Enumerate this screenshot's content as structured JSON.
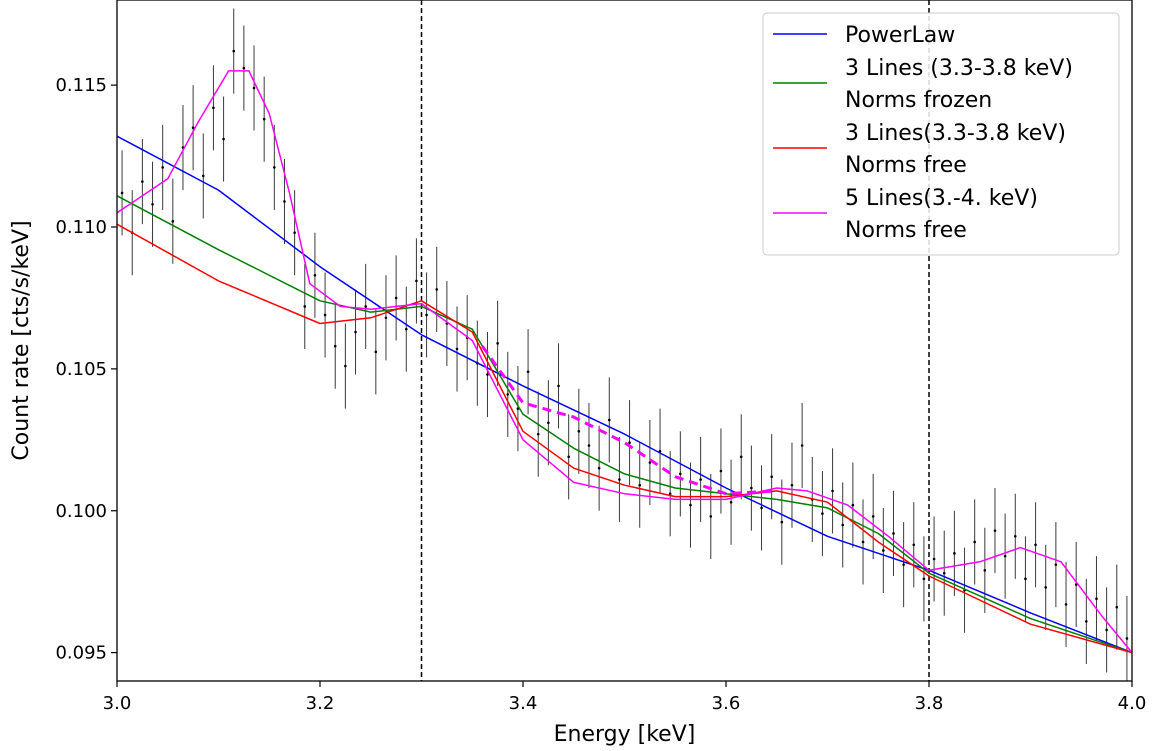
{
  "chart_data": {
    "type": "line",
    "xlabel": "Energy [keV]",
    "ylabel": "Count rate [cts/s/keV]",
    "xlim": [
      3.0,
      4.0
    ],
    "ylim": [
      0.094,
      0.118
    ],
    "xticks": [
      "3.0",
      "3.2",
      "3.4",
      "3.6",
      "3.8",
      "4.0"
    ],
    "yticks": [
      "0.095",
      "0.100",
      "0.105",
      "0.110",
      "0.115"
    ],
    "grid": false,
    "legend_position": "top-right",
    "vlines": [
      3.3,
      3.8
    ],
    "legend": [
      {
        "lines": [
          "PowerLaw"
        ],
        "color": "#0000ff"
      },
      {
        "lines": [
          "3 Lines (3.3-3.8 keV)",
          "Norms frozen"
        ],
        "color": "#008000"
      },
      {
        "lines": [
          "3 Lines(3.3-3.8 keV)",
          "Norms free"
        ],
        "color": "#ff0000"
      },
      {
        "lines": [
          "5 Lines(3.-4. keV)",
          "Norms free"
        ],
        "color": "#ff00ff"
      }
    ],
    "series": [
      {
        "name": "PowerLaw",
        "color": "#0000ff",
        "x": [
          3.0,
          3.1,
          3.2,
          3.3,
          3.4,
          3.5,
          3.6,
          3.7,
          3.8,
          3.9,
          4.0
        ],
        "y": [
          0.1132,
          0.1113,
          0.1086,
          0.1062,
          0.1044,
          0.1027,
          0.1008,
          0.0991,
          0.0979,
          0.0964,
          0.095
        ]
      },
      {
        "name": "3 Lines (3.3-3.8 keV) Norms frozen",
        "color": "#008000",
        "x": [
          3.0,
          3.1,
          3.2,
          3.25,
          3.3,
          3.35,
          3.4,
          3.45,
          3.5,
          3.55,
          3.6,
          3.65,
          3.7,
          3.75,
          3.8,
          3.9,
          4.0
        ],
        "y": [
          0.1111,
          0.1092,
          0.1074,
          0.107,
          0.1072,
          0.1064,
          0.1034,
          0.1022,
          0.1013,
          0.1008,
          0.1006,
          0.1004,
          0.1001,
          0.0992,
          0.0978,
          0.0962,
          0.095
        ]
      },
      {
        "name": "3 Lines(3.3-3.8 keV) Norms free",
        "color": "#ff0000",
        "x": [
          3.0,
          3.1,
          3.2,
          3.25,
          3.3,
          3.35,
          3.4,
          3.45,
          3.5,
          3.55,
          3.6,
          3.65,
          3.7,
          3.75,
          3.8,
          3.9,
          4.0
        ],
        "y": [
          0.1101,
          0.1081,
          0.1066,
          0.1068,
          0.1074,
          0.1063,
          0.1028,
          0.1015,
          0.1009,
          0.1005,
          0.1005,
          0.1007,
          0.1003,
          0.0989,
          0.0977,
          0.096,
          0.095
        ]
      },
      {
        "name": "5 Lines(3.-4. keV) Norms free",
        "color": "#ff00ff",
        "x": [
          3.0,
          3.05,
          3.08,
          3.11,
          3.13,
          3.15,
          3.17,
          3.19,
          3.22,
          3.25,
          3.3,
          3.35,
          3.4,
          3.45,
          3.5,
          3.55,
          3.6,
          3.65,
          3.68,
          3.72,
          3.76,
          3.8,
          3.85,
          3.89,
          3.93,
          3.97,
          4.0
        ],
        "y": [
          0.1105,
          0.1117,
          0.1137,
          0.1155,
          0.1155,
          0.114,
          0.1112,
          0.108,
          0.1072,
          0.1071,
          0.1073,
          0.106,
          0.1025,
          0.101,
          0.1006,
          0.1004,
          0.1004,
          0.1008,
          0.1007,
          0.1002,
          0.0991,
          0.0979,
          0.0982,
          0.0987,
          0.0982,
          0.0963,
          0.095
        ]
      },
      {
        "name": "dashed",
        "color": "#ff00ff",
        "dashed": true,
        "x": [
          3.36,
          3.4,
          3.45,
          3.5,
          3.55,
          3.6,
          3.65
        ],
        "y": [
          0.1058,
          0.1038,
          0.1033,
          0.1024,
          0.1012,
          0.1006,
          0.1007
        ]
      }
    ],
    "data_points": {
      "x": [
        3.005,
        3.015,
        3.025,
        3.035,
        3.045,
        3.055,
        3.065,
        3.075,
        3.085,
        3.095,
        3.105,
        3.115,
        3.125,
        3.135,
        3.145,
        3.155,
        3.165,
        3.175,
        3.185,
        3.195,
        3.205,
        3.215,
        3.225,
        3.235,
        3.245,
        3.255,
        3.265,
        3.275,
        3.285,
        3.295,
        3.305,
        3.315,
        3.325,
        3.335,
        3.345,
        3.355,
        3.365,
        3.375,
        3.385,
        3.395,
        3.405,
        3.415,
        3.425,
        3.435,
        3.445,
        3.455,
        3.465,
        3.475,
        3.485,
        3.495,
        3.505,
        3.515,
        3.525,
        3.535,
        3.545,
        3.555,
        3.565,
        3.575,
        3.585,
        3.595,
        3.605,
        3.615,
        3.625,
        3.635,
        3.645,
        3.655,
        3.665,
        3.675,
        3.685,
        3.695,
        3.705,
        3.715,
        3.725,
        3.735,
        3.745,
        3.755,
        3.765,
        3.775,
        3.785,
        3.795,
        3.805,
        3.815,
        3.825,
        3.835,
        3.845,
        3.855,
        3.865,
        3.875,
        3.885,
        3.895,
        3.905,
        3.915,
        3.925,
        3.935,
        3.945,
        3.955,
        3.965,
        3.975,
        3.985,
        3.995
      ],
      "y": [
        0.1112,
        0.1098,
        0.1116,
        0.1108,
        0.1121,
        0.1102,
        0.1128,
        0.1135,
        0.1118,
        0.1142,
        0.1131,
        0.1162,
        0.1156,
        0.1149,
        0.1138,
        0.1121,
        0.1109,
        0.1098,
        0.1072,
        0.1083,
        0.1069,
        0.1058,
        0.1051,
        0.1063,
        0.1072,
        0.1056,
        0.1068,
        0.1075,
        0.1064,
        0.1081,
        0.1069,
        0.1078,
        0.1066,
        0.1057,
        0.1061,
        0.1052,
        0.1048,
        0.1059,
        0.1041,
        0.1036,
        0.1049,
        0.1027,
        0.1031,
        0.1044,
        0.1019,
        0.1028,
        0.1023,
        0.1015,
        0.1032,
        0.1011,
        0.1024,
        0.1009,
        0.1017,
        0.1021,
        0.1006,
        0.1013,
        0.1002,
        0.1011,
        0.0998,
        0.1014,
        0.1003,
        0.1019,
        0.1008,
        0.1001,
        0.1012,
        0.0996,
        0.1009,
        0.1023,
        0.1004,
        0.0999,
        0.1007,
        0.0995,
        0.1002,
        0.0989,
        0.0998,
        0.0986,
        0.0992,
        0.0981,
        0.0988,
        0.0976,
        0.0983,
        0.0978,
        0.0985,
        0.0972,
        0.0989,
        0.0979,
        0.0993,
        0.0984,
        0.0991,
        0.0976,
        0.0988,
        0.0973,
        0.0981,
        0.0967,
        0.0974,
        0.0961,
        0.0969,
        0.0958,
        0.0966,
        0.0955
      ],
      "err": 0.0015
    }
  }
}
